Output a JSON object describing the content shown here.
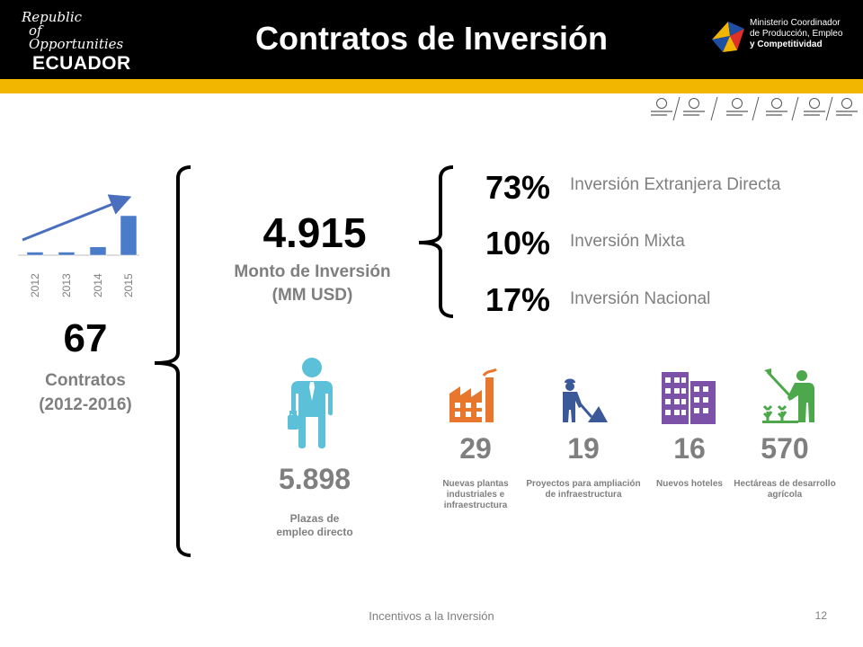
{
  "header": {
    "title": "Contratos de Inversión",
    "logo_left": {
      "line1": "Republic",
      "line2": "of Opportunities",
      "line3": "ECUADOR"
    },
    "logo_right": {
      "line1": "Ministerio Coordinador",
      "line2": "de Producción, Empleo",
      "line3": "y Competitividad"
    },
    "colors": {
      "header_bg": "#000000",
      "stripe": "#f2b600"
    }
  },
  "contracts": {
    "value": "67",
    "label_line1": "Contratos",
    "label_line2": "(2012-2016)"
  },
  "chart_data": {
    "type": "bar",
    "categories": [
      "2012",
      "2013",
      "2014",
      "2015"
    ],
    "values": [
      1.5,
      1.5,
      4,
      19
    ],
    "title": "",
    "xlabel": "",
    "ylabel": "",
    "grid": false,
    "bar_color": "#4a7cc9",
    "trend_arrow_color": "#4a6fbf"
  },
  "investment": {
    "value": "4.915",
    "label": "Monto de Inversión (MM USD)"
  },
  "breakdown": [
    {
      "percent": "73%",
      "label": "Inversión Extranjera Directa"
    },
    {
      "percent": "10%",
      "label": "Inversión Mixta"
    },
    {
      "percent": "17%",
      "label": "Inversión Nacional"
    }
  ],
  "employment": {
    "value": "5.898",
    "label_line1": "Plazas de",
    "label_line2": "empleo directo",
    "icon": "person-icon",
    "color": "#5bc0d8"
  },
  "stats": [
    {
      "value": "29",
      "label": "Nuevas plantas industriales e infraestructura",
      "icon": "factory-icon",
      "color": "#e8762c"
    },
    {
      "value": "19",
      "label": "Proyectos para ampliación de infraestructura",
      "icon": "worker-icon",
      "color": "#3b5998"
    },
    {
      "value": "16",
      "label": "Nuevos hoteles",
      "icon": "hotel-icon",
      "color": "#7b52a8"
    },
    {
      "value": "570",
      "label": "Hectáreas de desarrollo agrícola",
      "icon": "farmer-icon",
      "color": "#4ca84a"
    }
  ],
  "footer": {
    "text": "Incentivos a la Inversión",
    "page": "12"
  }
}
